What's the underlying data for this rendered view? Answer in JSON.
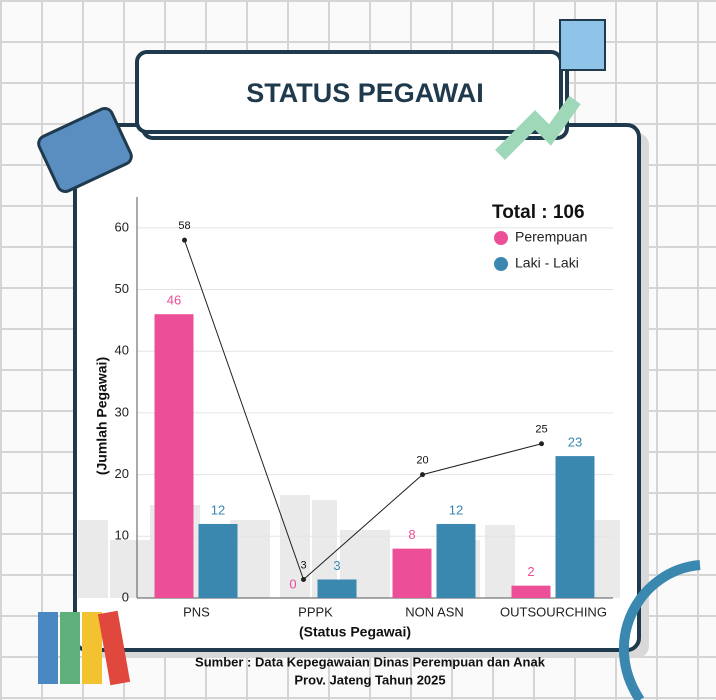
{
  "chart_data": {
    "type": "bar",
    "title": "STATUS PEGAWAI",
    "total_label": "Total : 106",
    "y_label": "(Jumlah Pegawai)",
    "x_label": "(Status Pegawai)",
    "source": [
      "Sumber : Data Kepegawaian Dinas Perempuan dan Anak",
      "Prov. Jateng Tahun 2025"
    ],
    "categories": [
      "PNS",
      "PPPK",
      "NON ASN",
      "OUTSOURCHING"
    ],
    "series": [
      {
        "name": "Perempuan",
        "color": "#ec4f98",
        "values": [
          46,
          0,
          8,
          2
        ]
      },
      {
        "name": "Laki - Laki",
        "color": "#3a87b0",
        "values": [
          12,
          3,
          12,
          23
        ]
      }
    ],
    "line": {
      "type": "line",
      "color": "#222222",
      "values": [
        58,
        3,
        20,
        25
      ]
    },
    "ylim": [
      0,
      65
    ],
    "yticks": [
      0,
      10,
      20,
      30,
      40,
      50,
      60
    ],
    "grid": true
  }
}
